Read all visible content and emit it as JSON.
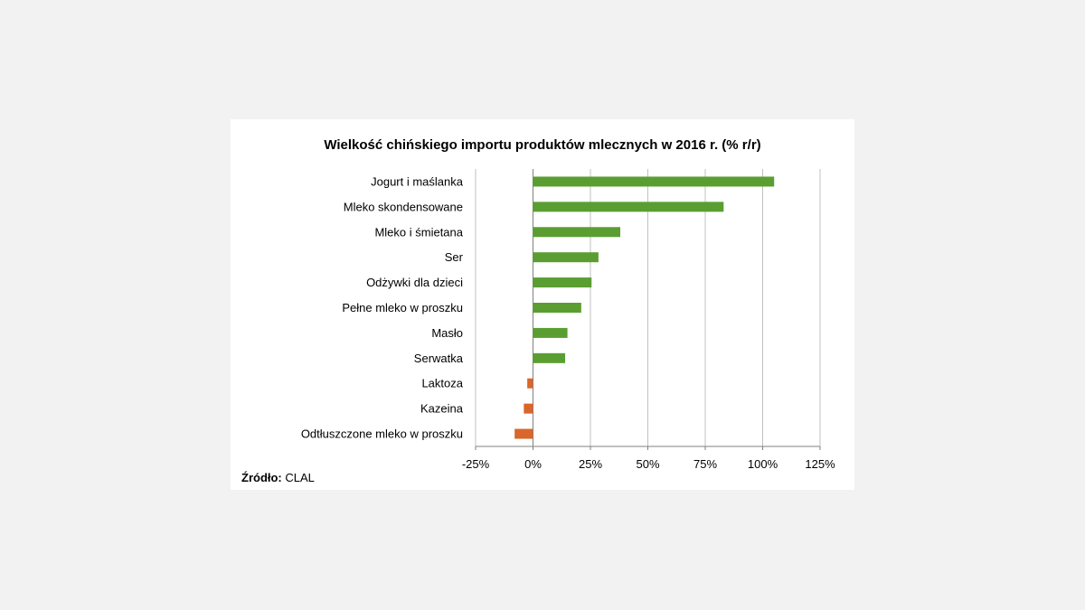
{
  "chart_data": {
    "type": "bar",
    "orientation": "horizontal",
    "title": "Wielkość chińskiego importu produktów mlecznych w 2016 r. (% r/r)",
    "categories": [
      "Jogurt i maślanka",
      "Mleko skondensowane",
      "Mleko i śmietana",
      "Ser",
      "Odżywki dla dzieci",
      "Pełne mleko w proszku",
      "Masło",
      "Serwatka",
      "Laktoza",
      "Kazeina",
      "Odtłuszczone mleko w proszku"
    ],
    "values": [
      105,
      83,
      38,
      28.5,
      25.5,
      21,
      15,
      14,
      -2.5,
      -4,
      -8
    ],
    "xlim": [
      -25,
      125
    ],
    "xticks": [
      -25,
      0,
      25,
      50,
      75,
      100,
      125
    ],
    "xtick_labels": [
      "-25%",
      "0%",
      "25%",
      "50%",
      "75%",
      "100%",
      "125%"
    ],
    "grid": true,
    "colors": {
      "positive": "#5a9e32",
      "negative": "#d9662a",
      "grid": "#c0c0c0",
      "axis": "#808080"
    }
  },
  "source": {
    "label": "Źródło:",
    "value": "CLAL"
  }
}
